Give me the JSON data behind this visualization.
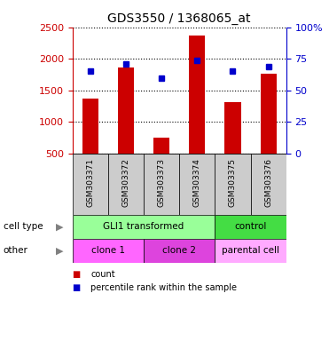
{
  "title": "GDS3550 / 1368065_at",
  "samples": [
    "GSM303371",
    "GSM303372",
    "GSM303373",
    "GSM303374",
    "GSM303375",
    "GSM303376"
  ],
  "counts": [
    1370,
    1860,
    750,
    2370,
    1320,
    1760
  ],
  "percentile_ranks": [
    65,
    71,
    60,
    74,
    65,
    69
  ],
  "left_ylim": [
    500,
    2500
  ],
  "left_yticks": [
    500,
    1000,
    1500,
    2000,
    2500
  ],
  "right_ylim": [
    0,
    100
  ],
  "right_yticks": [
    0,
    25,
    50,
    75,
    100
  ],
  "right_yticklabels": [
    "0",
    "25",
    "50",
    "75",
    "100%"
  ],
  "bar_color": "#cc0000",
  "dot_color": "#0000cc",
  "bar_width": 0.45,
  "cell_type_labels": [
    {
      "label": "GLI1 transformed",
      "start": 0,
      "end": 4,
      "color": "#99ff99"
    },
    {
      "label": "control",
      "start": 4,
      "end": 6,
      "color": "#44dd44"
    }
  ],
  "other_labels": [
    {
      "label": "clone 1",
      "start": 0,
      "end": 2,
      "color": "#ff66ff"
    },
    {
      "label": "clone 2",
      "start": 2,
      "end": 4,
      "color": "#dd44dd"
    },
    {
      "label": "parental cell",
      "start": 4,
      "end": 6,
      "color": "#ffaaff"
    }
  ],
  "row_label_cell_type": "cell type",
  "row_label_other": "other",
  "legend_count_label": "count",
  "legend_pct_label": "percentile rank within the sample",
  "tick_label_color_left": "#cc0000",
  "tick_label_color_right": "#0000cc",
  "sample_bg_color": "#cccccc"
}
